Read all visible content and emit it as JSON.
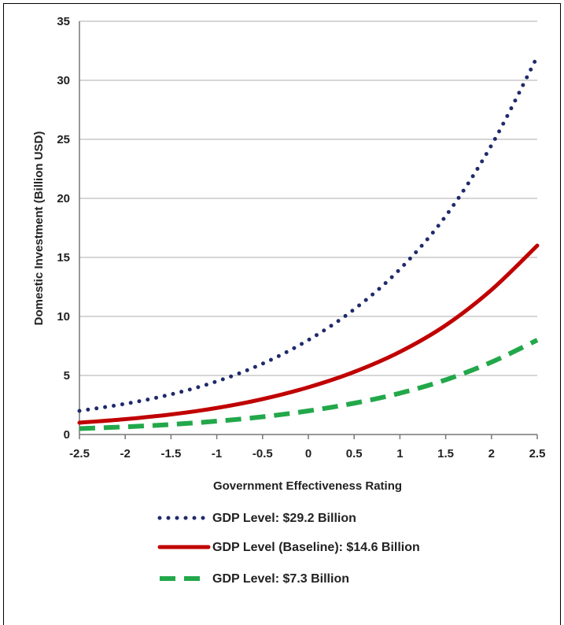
{
  "chart_data": {
    "type": "line",
    "title": "",
    "xlabel": "Government Effectiveness Rating",
    "ylabel": "Domestic Investment (Billion USD)",
    "x": [
      -2.5,
      -2,
      -1.5,
      -1,
      -0.5,
      0,
      0.5,
      1,
      1.5,
      2,
      2.5
    ],
    "x_ticks": [
      "-2.5",
      "-2",
      "-1.5",
      "-1",
      "-0.5",
      "0",
      "0.5",
      "1",
      "1.5",
      "2",
      "2.5"
    ],
    "y_ticks": [
      "0",
      "5",
      "10",
      "15",
      "20",
      "25",
      "30",
      "35"
    ],
    "xlim": [
      -2.5,
      2.5
    ],
    "ylim": [
      0,
      35
    ],
    "grid": "horizontal",
    "legend_position": "bottom",
    "series": [
      {
        "name": "GDP Level: $29.2 Billion",
        "style": "dotted",
        "color": "#1F2A6B",
        "values": [
          2.0,
          2.6,
          3.4,
          4.5,
          6.0,
          8.0,
          10.6,
          14.0,
          18.5,
          24.5,
          32.0
        ]
      },
      {
        "name": "GDP Level (Baseline): $14.6 Billion",
        "style": "solid",
        "color": "#C00000",
        "values": [
          1.0,
          1.3,
          1.7,
          2.25,
          3.0,
          4.0,
          5.3,
          7.0,
          9.25,
          12.25,
          16.0
        ]
      },
      {
        "name": "GDP Level: $7.3 Billion",
        "style": "dashed",
        "color": "#22A84A",
        "values": [
          0.5,
          0.65,
          0.85,
          1.13,
          1.5,
          2.0,
          2.65,
          3.5,
          4.63,
          6.13,
          8.0
        ]
      }
    ]
  }
}
